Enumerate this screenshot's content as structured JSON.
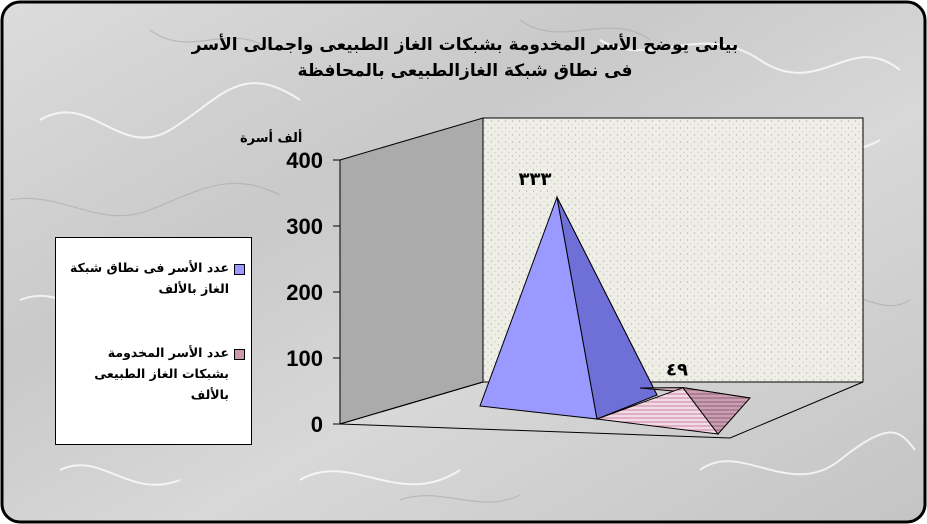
{
  "chart_data": {
    "type": "bar",
    "subtype": "3d-pyramid",
    "title_line1": "بيانى يوضح الأسر المخدومة بشبكات الغاز الطبيعى واجمالى الأسر",
    "title_line2": "فى نطاق شبكة الغازالطبيعى بالمحافظة",
    "ylabel": "ألف أسرة",
    "ylim": [
      0,
      400
    ],
    "yticks": [
      "400",
      "300",
      "200",
      "100",
      "0"
    ],
    "series": [
      {
        "name": "عدد الأسر فى نطاق شبكة الغاز بالألف",
        "value": 333,
        "data_label": "٣٣٣",
        "color": "#9999ff"
      },
      {
        "name": "عدد الأسر المخدومة بشبكات الغاز الطبيعى بالألف",
        "value": 49,
        "data_label": "٤٩",
        "color": "#cc99aa"
      }
    ],
    "legend_position": "left",
    "grid": false
  }
}
